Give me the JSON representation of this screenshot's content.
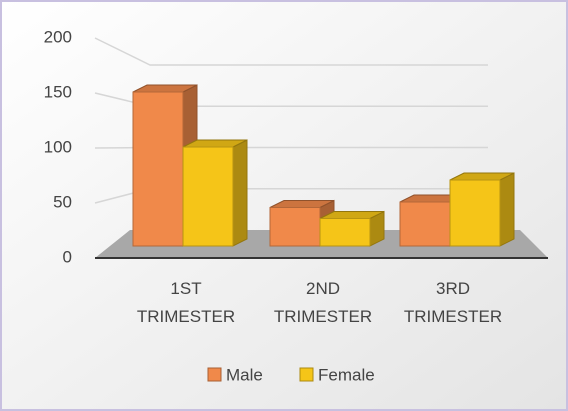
{
  "chart_data": {
    "type": "bar3d",
    "categories": [
      "1ST TRIMESTER",
      "2ND TRIMESTER",
      "3RD TRIMESTER"
    ],
    "series": [
      {
        "name": "Male",
        "color": "#f0894a",
        "values": [
          140,
          35,
          40
        ]
      },
      {
        "name": "Female",
        "color": "#f5c518",
        "values": [
          90,
          25,
          60
        ]
      }
    ],
    "ylim": [
      0,
      200
    ],
    "yticks": [
      0,
      50,
      100,
      150,
      200
    ],
    "grid": true,
    "legend": "bottom"
  }
}
